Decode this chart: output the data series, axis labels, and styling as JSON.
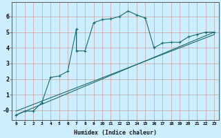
{
  "title": "",
  "xlabel": "Humidex (Indice chaleur)",
  "bg_color": "#cceeff",
  "line_color": "#1a6b6b",
  "grid_color": "#aad4dd",
  "x_ticks": [
    0,
    1,
    2,
    3,
    4,
    5,
    6,
    7,
    8,
    9,
    10,
    11,
    12,
    13,
    14,
    15,
    16,
    17,
    18,
    19,
    20,
    21,
    22,
    23
  ],
  "y_ticks": [
    0,
    1,
    2,
    3,
    4,
    5,
    6
  ],
  "y_tick_labels": [
    "-0",
    "1",
    "2",
    "3",
    "4",
    "5",
    "6"
  ],
  "ylim": [
    -0.6,
    6.9
  ],
  "xlim": [
    -0.5,
    23.5
  ],
  "curve1_x": [
    0,
    1,
    2,
    3,
    4,
    5,
    6,
    7,
    7,
    8,
    9,
    10,
    11,
    12,
    13,
    14,
    15,
    16,
    17,
    18,
    19,
    20,
    21,
    22,
    23
  ],
  "curve1_y": [
    -0.3,
    -0.05,
    -0.05,
    0.5,
    2.1,
    2.2,
    2.5,
    5.2,
    3.8,
    3.8,
    5.6,
    5.8,
    5.85,
    6.0,
    6.35,
    6.1,
    5.9,
    4.0,
    4.3,
    4.35,
    4.35,
    4.7,
    4.85,
    5.0,
    5.0
  ],
  "curve2_x": [
    0,
    23
  ],
  "curve2_y": [
    -0.3,
    5.0
  ],
  "curve3_x": [
    0,
    23
  ],
  "curve3_y": [
    -0.05,
    4.85
  ]
}
